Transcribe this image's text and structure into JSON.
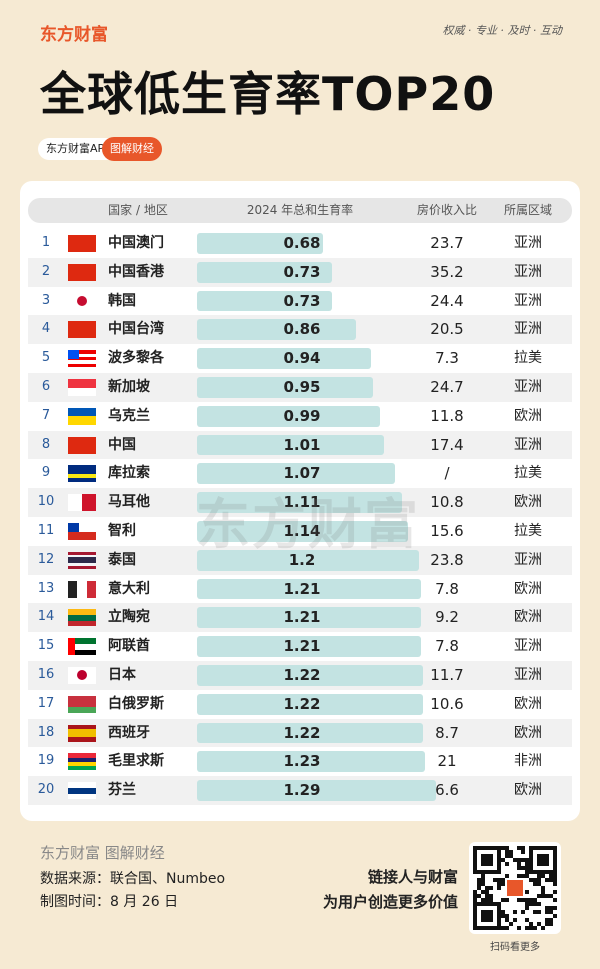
{
  "header": {
    "brand": "东方财富",
    "tagline": "权威 · 专业 · 及时 · 互动",
    "title": "全球低生育率TOP20",
    "badges": [
      "东方财富APP",
      "图解财经"
    ]
  },
  "table": {
    "columns": [
      "国家 / 地区",
      "2024 年总和生育率",
      "房价收入比",
      "所属区域"
    ],
    "rows": [
      {
        "rank": 1,
        "name": "中国澳门",
        "tfr": 0.68,
        "ratio": 23.7,
        "region": "亚洲"
      },
      {
        "rank": 2,
        "name": "中国香港",
        "tfr": 0.73,
        "ratio": 35.2,
        "region": "亚洲"
      },
      {
        "rank": 3,
        "name": "韩国",
        "tfr": 0.73,
        "ratio": 24.4,
        "region": "亚洲"
      },
      {
        "rank": 4,
        "name": "中国台湾",
        "tfr": 0.86,
        "ratio": 20.5,
        "region": "亚洲"
      },
      {
        "rank": 5,
        "name": "波多黎各",
        "tfr": 0.94,
        "ratio": 7.3,
        "region": "拉美"
      },
      {
        "rank": 6,
        "name": "新加坡",
        "tfr": 0.95,
        "ratio": 24.7,
        "region": "亚洲"
      },
      {
        "rank": 7,
        "name": "乌克兰",
        "tfr": 0.99,
        "ratio": 11.8,
        "region": "欧洲"
      },
      {
        "rank": 8,
        "name": "中国",
        "tfr": 1.01,
        "ratio": 17.4,
        "region": "亚洲"
      },
      {
        "rank": 9,
        "name": "库拉索",
        "tfr": 1.07,
        "ratio": "/",
        "region": "拉美"
      },
      {
        "rank": 10,
        "name": "马耳他",
        "tfr": 1.11,
        "ratio": 10.8,
        "region": "欧洲"
      },
      {
        "rank": 11,
        "name": "智利",
        "tfr": 1.14,
        "ratio": 15.6,
        "region": "拉美"
      },
      {
        "rank": 12,
        "name": "泰国",
        "tfr": 1.2,
        "ratio": 23.8,
        "region": "亚洲"
      },
      {
        "rank": 13,
        "name": "意大利",
        "tfr": 1.21,
        "ratio": 7.8,
        "region": "欧洲"
      },
      {
        "rank": 14,
        "name": "立陶宛",
        "tfr": 1.21,
        "ratio": 9.2,
        "region": "欧洲"
      },
      {
        "rank": 15,
        "name": "阿联酋",
        "tfr": 1.21,
        "ratio": 7.8,
        "region": "亚洲"
      },
      {
        "rank": 16,
        "name": "日本",
        "tfr": 1.22,
        "ratio": 11.7,
        "region": "亚洲"
      },
      {
        "rank": 17,
        "name": "白俄罗斯",
        "tfr": 1.22,
        "ratio": 10.6,
        "region": "欧洲"
      },
      {
        "rank": 18,
        "name": "西班牙",
        "tfr": 1.22,
        "ratio": 8.7,
        "region": "欧洲"
      },
      {
        "rank": 19,
        "name": "毛里求斯",
        "tfr": 1.23,
        "ratio": 21,
        "region": "非洲"
      },
      {
        "rank": 20,
        "name": "芬兰",
        "tfr": 1.29,
        "ratio": 6.6,
        "region": "欧洲"
      }
    ]
  },
  "watermark": "东方财富",
  "footer": {
    "brand": "东方财富",
    "subbrand": "图解财经",
    "source": "数据来源：联合国、Numbeo",
    "date": "制图时间：8 月 26 日",
    "slogan": [
      "链接人与财富",
      "为用户创造更多价值"
    ],
    "qr_caption": "扫码看更多"
  }
}
